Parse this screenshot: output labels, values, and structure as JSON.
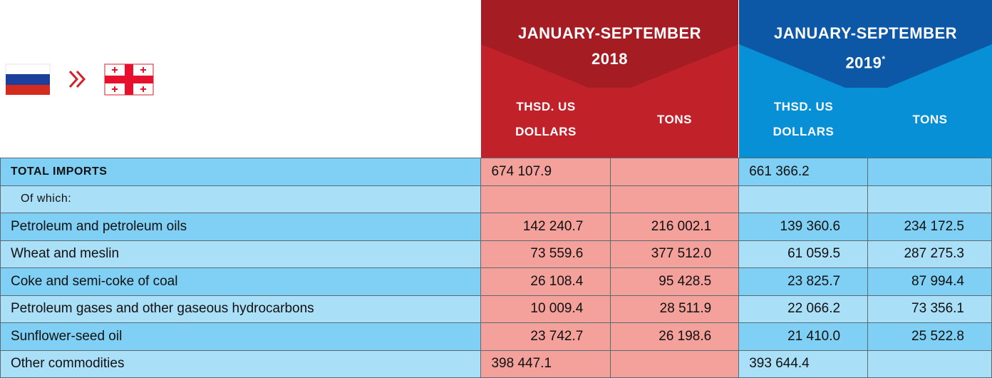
{
  "header": {
    "columns": [
      {
        "title": "JANUARY-SEPTEMBER",
        "year": "2018",
        "subheaders": [
          "THSD. US DOLLARS",
          "TONS"
        ]
      },
      {
        "title": "JANUARY-SEPTEMBER",
        "year": "2019",
        "note_mark": "*",
        "subheaders": [
          "THSD. US DOLLARS",
          "TONS"
        ]
      }
    ]
  },
  "table": {
    "rows": [
      [
        "TOTAL IMPORTS",
        "674 107.9",
        null,
        "661 366.2",
        null
      ],
      [
        "Of which:",
        null,
        null,
        null,
        null
      ],
      [
        "Petroleum and petroleum oils",
        "142 240.7",
        "216 002.1",
        "139 360.6",
        "234 172.5"
      ],
      [
        "Wheat and meslin",
        "73 559.6",
        "377 512.0",
        "61 059.5",
        "287 275.3"
      ],
      [
        "Coke and semi-coke of coal",
        "26 108.4",
        "95 428.5",
        "23 825.7",
        "87 994.4"
      ],
      [
        "Petroleum gases and other gaseous hydrocarbons",
        "10 009.4",
        "28 511.9",
        "22 066.2",
        "73 356.1"
      ],
      [
        "Sunflower-seed oil",
        "23 742.7",
        "26 198.6",
        "21 410.0",
        "25 522.8"
      ],
      [
        "Other commodities",
        "398 447.1",
        null,
        "393 644.4",
        null
      ]
    ]
  }
}
